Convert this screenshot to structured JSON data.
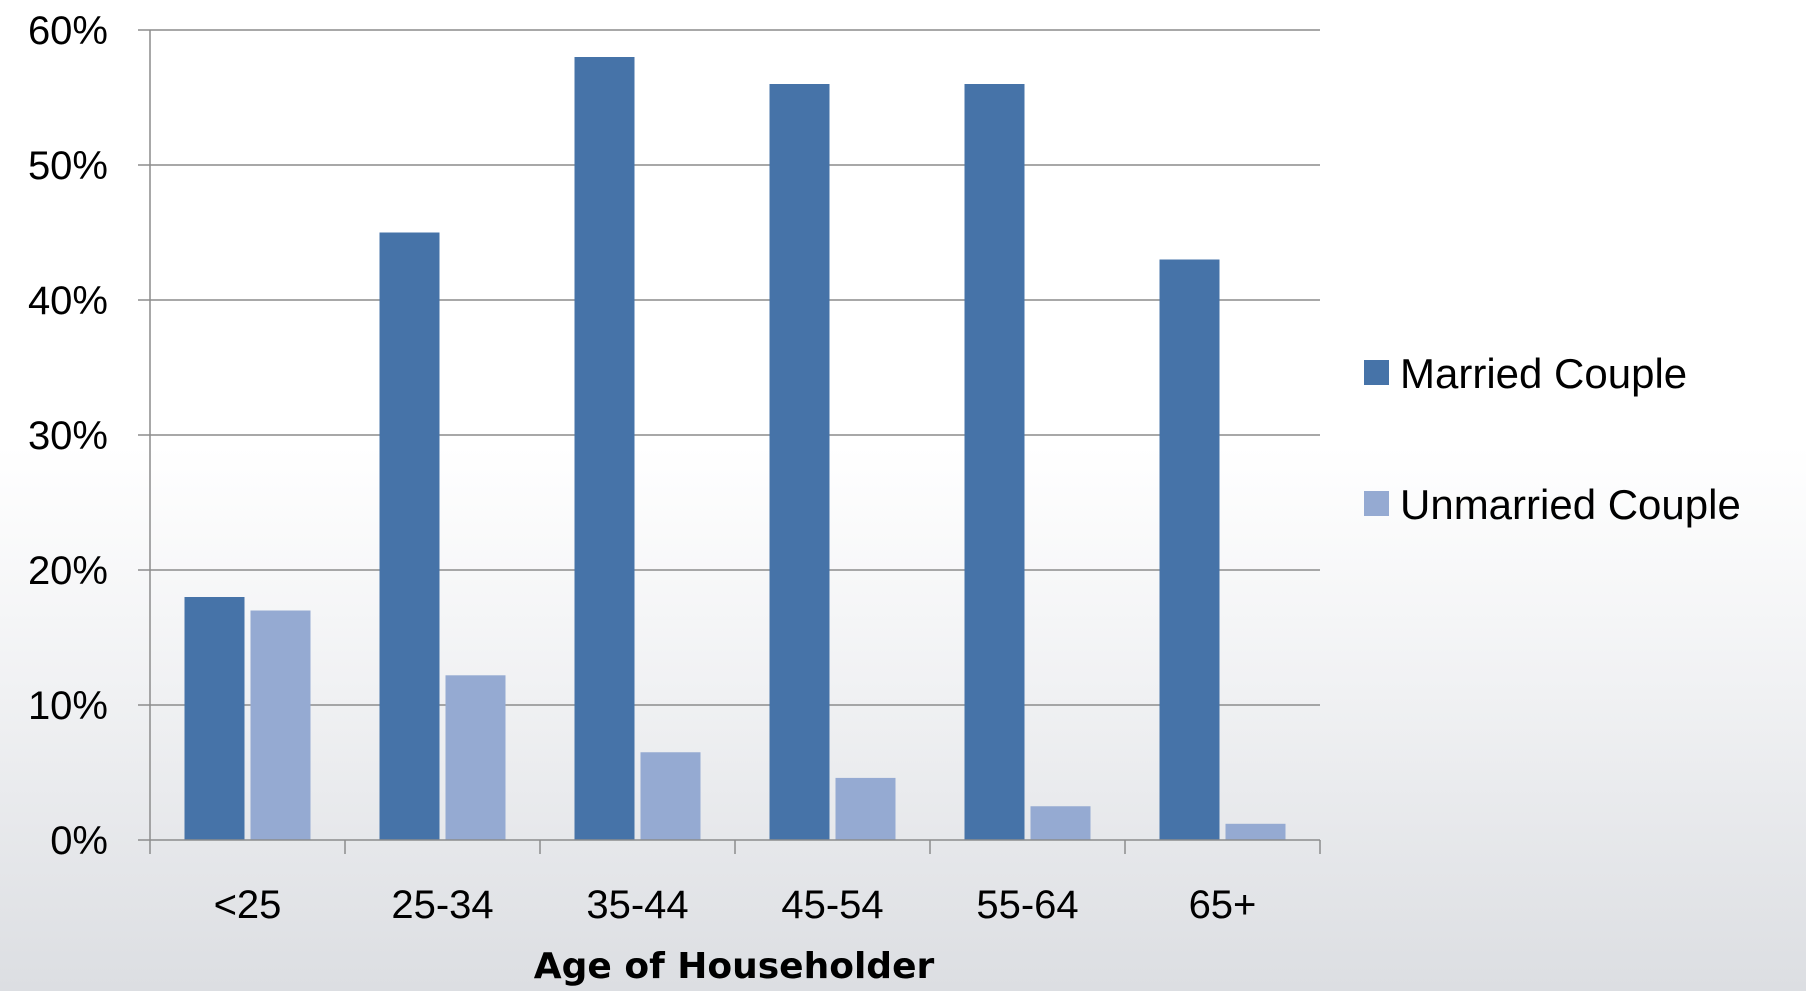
{
  "chart_data": {
    "type": "bar",
    "title": "",
    "xlabel": "Age of Householder",
    "ylabel": "",
    "categories": [
      "<25",
      "25-34",
      "35-44",
      "45-54",
      "55-64",
      "65+"
    ],
    "series": [
      {
        "name": "Married Couple",
        "color": "#4673a8",
        "values": [
          18,
          45,
          58,
          56,
          56,
          43
        ]
      },
      {
        "name": "Unmarried Couple",
        "color": "#95aad2",
        "values": [
          17,
          12.2,
          6.5,
          4.6,
          2.5,
          1.2
        ]
      }
    ],
    "ylim": [
      0,
      60
    ],
    "y_ticks": [
      "0%",
      "10%",
      "20%",
      "30%",
      "40%",
      "50%",
      "60%"
    ],
    "y_tick_values": [
      0,
      10,
      20,
      30,
      40,
      50,
      60
    ],
    "grid": true,
    "legend_position": "right"
  }
}
